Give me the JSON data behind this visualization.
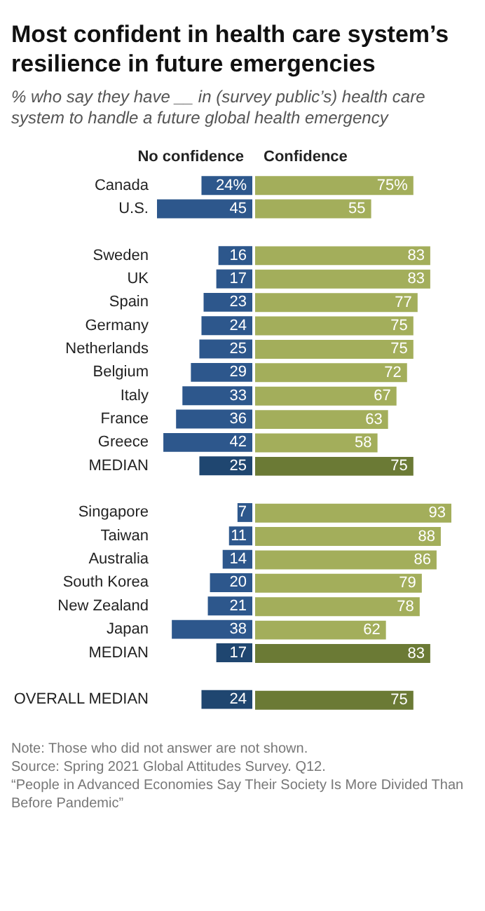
{
  "chart_data": [
    {
      "type": "bar",
      "orientation": "horizontal",
      "title": "Most confident in health care system’s resilience in future emergencies",
      "subtitle": "% who say they have __ in (survey public’s) health care system to handle a future global health emergency",
      "categories": [
        "Canada",
        "U.S.",
        null,
        "Sweden",
        "UK",
        "Spain",
        "Germany",
        "Netherlands",
        "Belgium",
        "Italy",
        "France",
        "Greece",
        "MEDIAN",
        null,
        "Singapore",
        "Taiwan",
        "Australia",
        "South Korea",
        "New Zealand",
        "Japan",
        "MEDIAN",
        null,
        "OVERALL MEDIAN"
      ],
      "series": [
        {
          "name": "No confidence",
          "color": "#2d578c",
          "values": [
            24,
            45,
            null,
            16,
            17,
            23,
            24,
            25,
            29,
            33,
            36,
            42,
            25,
            null,
            7,
            11,
            14,
            20,
            21,
            38,
            17,
            null,
            24
          ],
          "colors": [
            null,
            null,
            null,
            null,
            null,
            null,
            null,
            null,
            null,
            null,
            null,
            null,
            "#1f4670",
            null,
            null,
            null,
            null,
            null,
            null,
            null,
            "#1f4670",
            null,
            "#1f4670"
          ],
          "value_labels": [
            "24%",
            "45",
            null,
            "16",
            "17",
            "23",
            "24",
            "25",
            "29",
            "33",
            "36",
            "42",
            "25",
            null,
            "7",
            "11",
            "14",
            "20",
            "21",
            "38",
            "17",
            null,
            "24"
          ]
        }
      ],
      "tick_labels": "y",
      "grid": false,
      "annotations": [
        "Note: Those who did not answer are not shown.",
        "Source: Spring 2021 Global Attitudes Survey. Q12.",
        "“People in Advanced Economies Say Their Society Is More Divided Than Before Pandemic”"
      ]
    },
    {
      "type": "bar",
      "orientation": "horizontal",
      "categories": [
        null,
        null,
        null,
        null,
        null,
        null,
        null,
        null,
        null,
        null,
        null,
        null,
        null,
        null,
        null,
        null,
        null,
        null,
        null,
        null,
        null,
        null,
        null
      ],
      "series": [
        {
          "name": "Confidence",
          "color": "#a3ae5b",
          "values": [
            75,
            55,
            null,
            83,
            83,
            77,
            75,
            75,
            72,
            67,
            63,
            58,
            75,
            null,
            93,
            88,
            86,
            79,
            78,
            62,
            83,
            null,
            75
          ],
          "colors": [
            null,
            null,
            null,
            null,
            null,
            null,
            null,
            null,
            null,
            null,
            null,
            null,
            "#6b7a35",
            null,
            null,
            null,
            null,
            null,
            null,
            null,
            "#6b7a35",
            null,
            "#6b7a35"
          ],
          "value_labels": [
            "75%",
            "55",
            null,
            "83",
            "83",
            "77",
            "75",
            "75",
            "72",
            "67",
            "63",
            "58",
            "75",
            null,
            "93",
            "88",
            "86",
            "79",
            "78",
            "62",
            "83",
            null,
            "75"
          ]
        }
      ],
      "tick_labels": false,
      "grid": false
    }
  ]
}
